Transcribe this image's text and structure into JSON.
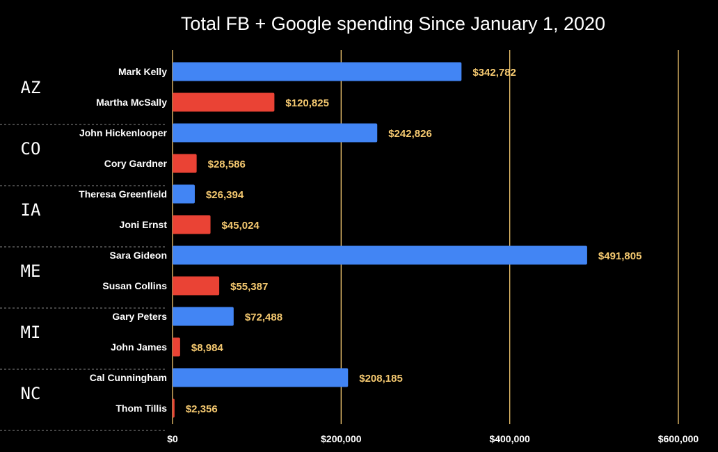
{
  "chart_data": {
    "type": "bar",
    "orientation": "horizontal",
    "title": "Total FB + Google spending Since January 1, 2020",
    "xlim": [
      0,
      600000
    ],
    "x_ticks": [
      0,
      200000,
      400000,
      600000
    ],
    "x_tick_labels": [
      "$0",
      "$200,000",
      "$400,000",
      "$600,000"
    ],
    "grid": true,
    "colors": {
      "democrat": "#4285f4",
      "republican": "#ea4335",
      "value_label": "#f5c970",
      "gridline": "#f5c970"
    },
    "groups": [
      {
        "state": "AZ",
        "candidates": [
          {
            "name": "Mark Kelly",
            "value": 342782,
            "label": "$342,782",
            "party": "democrat"
          },
          {
            "name": "Martha McSally",
            "value": 120825,
            "label": "$120,825",
            "party": "republican"
          }
        ]
      },
      {
        "state": "CO",
        "candidates": [
          {
            "name": "John Hickenlooper",
            "value": 242826,
            "label": "$242,826",
            "party": "democrat"
          },
          {
            "name": "Cory Gardner",
            "value": 28586,
            "label": "$28,586",
            "party": "republican"
          }
        ]
      },
      {
        "state": "IA",
        "candidates": [
          {
            "name": "Theresa Greenfield",
            "value": 26394,
            "label": "$26,394",
            "party": "democrat"
          },
          {
            "name": "Joni Ernst",
            "value": 45024,
            "label": "$45,024",
            "party": "republican"
          }
        ]
      },
      {
        "state": "ME",
        "candidates": [
          {
            "name": "Sara Gideon",
            "value": 491805,
            "label": "$491,805",
            "party": "democrat"
          },
          {
            "name": "Susan Collins",
            "value": 55387,
            "label": "$55,387",
            "party": "republican"
          }
        ]
      },
      {
        "state": "MI",
        "candidates": [
          {
            "name": "Gary Peters",
            "value": 72488,
            "label": "$72,488",
            "party": "democrat"
          },
          {
            "name": "John James",
            "value": 8984,
            "label": "$8,984",
            "party": "republican"
          }
        ]
      },
      {
        "state": "NC",
        "candidates": [
          {
            "name": "Cal Cunningham",
            "value": 208185,
            "label": "$208,185",
            "party": "democrat"
          },
          {
            "name": "Thom Tillis",
            "value": 2356,
            "label": "$2,356",
            "party": "republican"
          }
        ]
      }
    ]
  }
}
